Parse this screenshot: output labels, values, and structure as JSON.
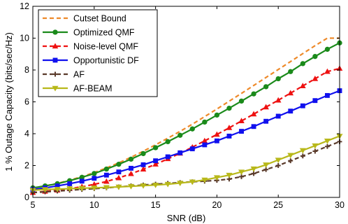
{
  "chart_data": {
    "type": "line",
    "xlabel": "SNR (dB)",
    "ylabel": "1 % Outage Capacity (bits/sec/Hz)",
    "xlim": [
      5,
      30
    ],
    "ylim": [
      0,
      12
    ],
    "xticks": [
      "5",
      "10",
      "15",
      "20",
      "25",
      "30"
    ],
    "yticks": [
      "0",
      "2",
      "4",
      "6",
      "8",
      "10",
      "12"
    ],
    "grid": false,
    "legend_position": "top-left",
    "series": [
      {
        "name": "Cutset Bound",
        "color": "#ee8a2a",
        "line": "dashed",
        "marker": "none",
        "x": [
          5,
          6,
          7,
          8,
          9,
          10,
          11,
          12,
          13,
          14,
          15,
          16,
          17,
          18,
          19,
          20,
          21,
          22,
          23,
          24,
          25,
          26,
          27,
          28,
          29,
          30
        ],
        "y": [
          0.6,
          0.72,
          0.88,
          1.08,
          1.3,
          1.56,
          1.85,
          2.17,
          2.52,
          2.9,
          3.3,
          3.72,
          4.15,
          4.6,
          5.07,
          5.55,
          6.04,
          6.53,
          7.03,
          7.53,
          8.03,
          8.53,
          9.03,
          9.53,
          10.0,
          10.0
        ]
      },
      {
        "name": "Optimized QMF",
        "color": "#1a8a1a",
        "line": "solid",
        "marker": "circle",
        "x": [
          5,
          6,
          7,
          8,
          9,
          10,
          11,
          12,
          13,
          14,
          15,
          16,
          17,
          18,
          19,
          20,
          21,
          22,
          23,
          24,
          25,
          26,
          27,
          28,
          29,
          30
        ],
        "y": [
          0.6,
          0.72,
          0.86,
          1.05,
          1.26,
          1.5,
          1.78,
          2.08,
          2.4,
          2.75,
          3.12,
          3.5,
          3.9,
          4.3,
          4.73,
          5.17,
          5.6,
          6.05,
          6.5,
          6.95,
          7.45,
          7.9,
          8.4,
          8.85,
          9.3,
          9.7
        ]
      },
      {
        "name": "Noise-level QMF",
        "color": "#ee1111",
        "line": "dashed",
        "marker": "triangle-up",
        "x": [
          5,
          6,
          7,
          8,
          9,
          10,
          11,
          12,
          13,
          14,
          15,
          16,
          17,
          18,
          19,
          20,
          21,
          22,
          23,
          24,
          25,
          26,
          27,
          28,
          29,
          30
        ],
        "y": [
          0.3,
          0.38,
          0.45,
          0.55,
          0.67,
          0.82,
          1.0,
          1.22,
          1.48,
          1.77,
          2.08,
          2.42,
          2.77,
          3.15,
          3.55,
          3.95,
          4.37,
          4.8,
          5.23,
          5.67,
          6.1,
          6.55,
          7.0,
          7.45,
          7.9,
          8.1
        ]
      },
      {
        "name": "Opportunistic DF",
        "color": "#1010ee",
        "line": "solid",
        "marker": "square",
        "x": [
          5,
          6,
          7,
          8,
          9,
          10,
          11,
          12,
          13,
          14,
          15,
          16,
          17,
          18,
          19,
          20,
          21,
          22,
          23,
          24,
          25,
          26,
          27,
          28,
          29,
          30
        ],
        "y": [
          0.5,
          0.6,
          0.72,
          0.86,
          1.02,
          1.2,
          1.4,
          1.6,
          1.83,
          2.05,
          2.3,
          2.55,
          2.8,
          3.05,
          3.3,
          3.55,
          3.85,
          4.15,
          4.45,
          4.78,
          5.1,
          5.42,
          5.75,
          6.08,
          6.4,
          6.7
        ]
      },
      {
        "name": "AF",
        "color": "#5a3a2a",
        "line": "dashed",
        "marker": "plus",
        "x": [
          5,
          6,
          7,
          8,
          9,
          10,
          11,
          12,
          13,
          14,
          15,
          16,
          17,
          18,
          19,
          20,
          21,
          22,
          23,
          24,
          25,
          26,
          27,
          28,
          29,
          30
        ],
        "y": [
          0.3,
          0.35,
          0.4,
          0.45,
          0.5,
          0.55,
          0.6,
          0.66,
          0.72,
          0.78,
          0.83,
          0.88,
          0.93,
          0.98,
          1.02,
          1.07,
          1.15,
          1.3,
          1.5,
          1.75,
          2.0,
          2.3,
          2.6,
          2.9,
          3.2,
          3.5
        ]
      },
      {
        "name": "AF-BEAM",
        "color": "#b8b81a",
        "line": "solid",
        "marker": "triangle-down",
        "x": [
          5,
          6,
          7,
          8,
          9,
          10,
          11,
          12,
          13,
          14,
          15,
          16,
          17,
          18,
          19,
          20,
          21,
          22,
          23,
          24,
          25,
          26,
          27,
          28,
          29,
          30
        ],
        "y": [
          0.45,
          0.5,
          0.52,
          0.55,
          0.58,
          0.6,
          0.63,
          0.66,
          0.7,
          0.74,
          0.78,
          0.83,
          0.9,
          0.98,
          1.1,
          1.25,
          1.4,
          1.6,
          1.8,
          2.05,
          2.35,
          2.65,
          2.95,
          3.25,
          3.55,
          3.85
        ]
      }
    ]
  }
}
